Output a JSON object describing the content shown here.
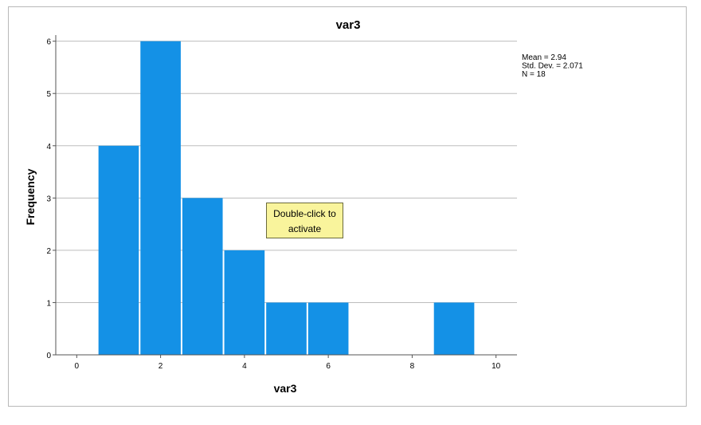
{
  "chart_data": {
    "type": "bar",
    "title": "var3",
    "xlabel": "var3",
    "ylabel": "Frequency",
    "xlim": [
      -0.5,
      10.5
    ],
    "ylim": [
      0,
      6.3
    ],
    "xticks": [
      0,
      2,
      4,
      6,
      8,
      10
    ],
    "yticks": [
      0,
      1,
      2,
      3,
      4,
      5,
      6
    ],
    "bins": [
      {
        "x": 1,
        "count": 4
      },
      {
        "x": 2,
        "count": 6
      },
      {
        "x": 3,
        "count": 3
      },
      {
        "x": 4,
        "count": 2
      },
      {
        "x": 5,
        "count": 1
      },
      {
        "x": 6,
        "count": 1
      },
      {
        "x": 9,
        "count": 1
      }
    ],
    "bar_color": "#1491e6",
    "grid": true,
    "stats": [
      "Mean = 2.94",
      "Std. Dev. = 2.071",
      "N = 18"
    ]
  },
  "tooltip": {
    "line1": "Double-click to",
    "line2": "activate"
  }
}
